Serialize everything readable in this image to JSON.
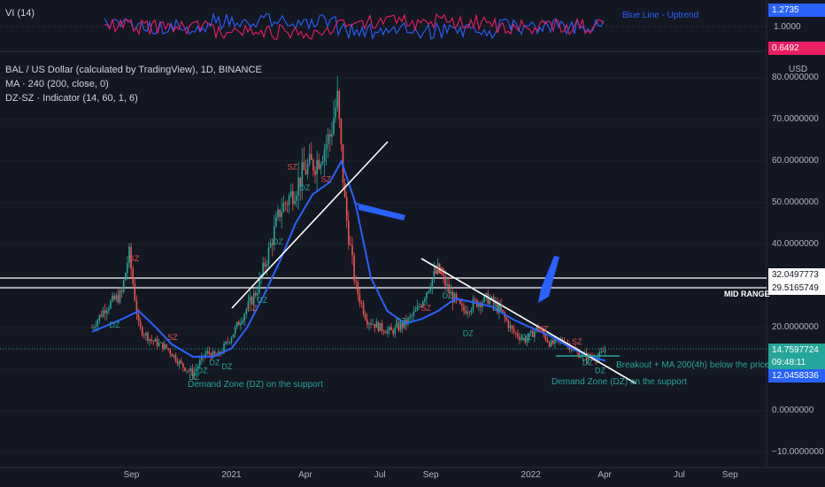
{
  "top_panel": {
    "indicator_label": "VI (14)",
    "note": "Blue Line - Uptrend",
    "vi_plus_value": "1.2735",
    "vi_minus_value": "0.6492",
    "tick_one": "1.0000",
    "colors": {
      "vi_plus": "#2962ff",
      "vi_minus": "#e91e63"
    }
  },
  "legend": {
    "symbol": "BAL / US Dollar (calculated by TradingView), 1D, BINANCE",
    "ma": "MA · 240 (200, close, 0)",
    "dzsz": "DZ-SZ · Indicator (14, 60, 1, 6)"
  },
  "price_axis": {
    "currency": "USD",
    "ticks": [
      "80.0000000",
      "70.0000000",
      "60.0000000",
      "50.0000000",
      "40.0000000",
      "20.0000000",
      "0.0000000",
      "−10.0000000"
    ],
    "resistance_high": "32.0497773",
    "resistance_low": "29.5165749",
    "last_price": "14.7597724",
    "countdown": "09:48:11",
    "ma_value": "12.0458336"
  },
  "time_axis": {
    "labels": [
      "Sep",
      "2021",
      "Apr",
      "Jul",
      "Sep",
      "2022",
      "Apr",
      "Jul",
      "Sep"
    ]
  },
  "annotations": {
    "mid_range": "MID RANGE",
    "demand_zone_1": "Demand Zone (DZ) on the support",
    "demand_zone_2": "Demand Zone (DZ) on the support",
    "breakout": "Breakout + MA 200(4h) below the price"
  },
  "chart_data": {
    "type": "line",
    "title": "BAL / US Dollar (calculated by TradingView), 1D, BINANCE",
    "ylim": [
      -10,
      82
    ],
    "x_labels": [
      "Sep",
      "2021",
      "Apr",
      "Jul",
      "Sep",
      "2022",
      "Apr",
      "Jul",
      "Sep"
    ],
    "series": [
      {
        "name": "BAL",
        "x": [
          "2020-07-15",
          "2020-08-01",
          "2020-08-20",
          "2020-08-29",
          "2020-09-10",
          "2020-09-25",
          "2020-10-15",
          "2020-11-01",
          "2020-11-15",
          "2020-12-01",
          "2020-12-15",
          "2021-01-01",
          "2021-01-15",
          "2021-02-01",
          "2021-02-15",
          "2021-03-01",
          "2021-03-15",
          "2021-04-01",
          "2021-04-15",
          "2021-05-01",
          "2021-05-10",
          "2021-05-20",
          "2021-06-01",
          "2021-06-15",
          "2021-07-01",
          "2021-07-15",
          "2021-08-01",
          "2021-08-15",
          "2021-09-01",
          "2021-09-10",
          "2021-09-25",
          "2021-10-10",
          "2021-10-25",
          "2021-11-10",
          "2021-11-25",
          "2021-12-10",
          "2021-12-25",
          "2022-01-10",
          "2022-01-25",
          "2022-02-10",
          "2022-02-25",
          "2022-03-10",
          "2022-03-25",
          "2022-04-02"
        ],
        "values": [
          20,
          25,
          28,
          38,
          20,
          17,
          15,
          11,
          9,
          14,
          13,
          18,
          23,
          29,
          38,
          48,
          52,
          58,
          60,
          66,
          75,
          48,
          30,
          22,
          20,
          19,
          21,
          24,
          31,
          34,
          28,
          24,
          26,
          27,
          24,
          19,
          17,
          20,
          16,
          17,
          14,
          13,
          13,
          14.76
        ]
      },
      {
        "name": "MA",
        "x": [
          "2020-07-15",
          "2020-08-20",
          "2020-09-10",
          "2020-10-01",
          "2020-10-20",
          "2020-11-15",
          "2020-12-10",
          "2021-01-01",
          "2021-01-20",
          "2021-02-10",
          "2021-03-01",
          "2021-03-20",
          "2021-04-10",
          "2021-05-01",
          "2021-05-15",
          "2021-06-01",
          "2021-06-20",
          "2021-07-10",
          "2021-08-01",
          "2021-08-20",
          "2021-09-10",
          "2021-10-01",
          "2021-10-25",
          "2021-11-15",
          "2021-12-10",
          "2022-01-01",
          "2022-01-25",
          "2022-02-20",
          "2022-03-15",
          "2022-04-02"
        ],
        "values": [
          19,
          22,
          24,
          20,
          16,
          13,
          13,
          15,
          20,
          28,
          36,
          45,
          52,
          55,
          60,
          50,
          32,
          24,
          21,
          22,
          24,
          27,
          26,
          25,
          22,
          20,
          18,
          15,
          13,
          12.05
        ]
      }
    ]
  }
}
